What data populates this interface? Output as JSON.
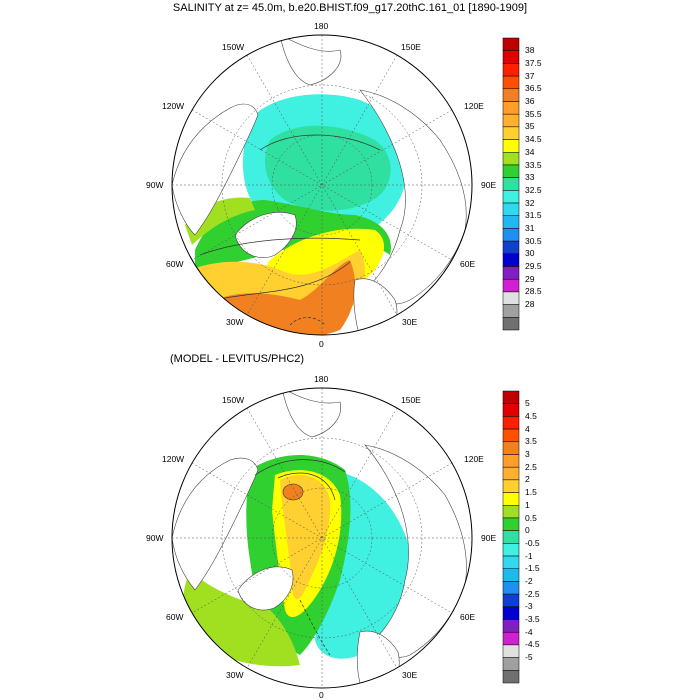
{
  "header": {
    "title": "SALINITY at z=  45.0m, b.e20.BHIST.f09_g17.20thC.161_01 [1890-1909]",
    "diff_title": "(MODEL - LEVITUS/PHC2)"
  },
  "map_top": {
    "lon_labels": [
      "180",
      "150W",
      "150E",
      "120W",
      "120E",
      "90W",
      "90E",
      "60W",
      "60E",
      "30W",
      "30E",
      "0"
    ]
  },
  "map_bottom": {
    "lon_labels": [
      "180",
      "150W",
      "150E",
      "120W",
      "120E",
      "90W",
      "90E",
      "60W",
      "60E",
      "30W",
      "30E",
      "0"
    ]
  },
  "colorbar_top": {
    "labels": [
      "38",
      "37.5",
      "37",
      "36.5",
      "36",
      "35.5",
      "35",
      "34.5",
      "34",
      "33.5",
      "33",
      "32.5",
      "32",
      "31.5",
      "31",
      "30.5",
      "30",
      "29.5",
      "29",
      "28.5",
      "28"
    ],
    "colors": [
      "#c00000",
      "#e00000",
      "#ff2000",
      "#ff5000",
      "#f08020",
      "#ff9e2a",
      "#ffb030",
      "#ffd030",
      "#ffff00",
      "#a0e020",
      "#30d030",
      "#30e0a0",
      "#40f0e0",
      "#30d8f0",
      "#20b8f0",
      "#2090f0",
      "#1040d0",
      "#0000d0",
      "#8020c0",
      "#d020d0",
      "#e0e0e0",
      "#a0a0a0",
      "#707070"
    ]
  },
  "colorbar_bottom": {
    "labels": [
      "5",
      "4.5",
      "4",
      "3.5",
      "3",
      "2.5",
      "2",
      "1.5",
      "1",
      "0.5",
      "0",
      "-0.5",
      "-1",
      "-1.5",
      "-2",
      "-2.5",
      "-3",
      "-3.5",
      "-4",
      "-4.5",
      "-5"
    ],
    "colors": [
      "#c00000",
      "#e00000",
      "#ff2000",
      "#ff5000",
      "#f08020",
      "#ff9e2a",
      "#ffb030",
      "#ffd030",
      "#ffff00",
      "#a0e020",
      "#30d030",
      "#30e0a0",
      "#40f0e0",
      "#30d8f0",
      "#20b8f0",
      "#2090f0",
      "#1040d0",
      "#0000d0",
      "#8020c0",
      "#d020d0",
      "#e0e0e0",
      "#a0a0a0",
      "#707070"
    ]
  }
}
